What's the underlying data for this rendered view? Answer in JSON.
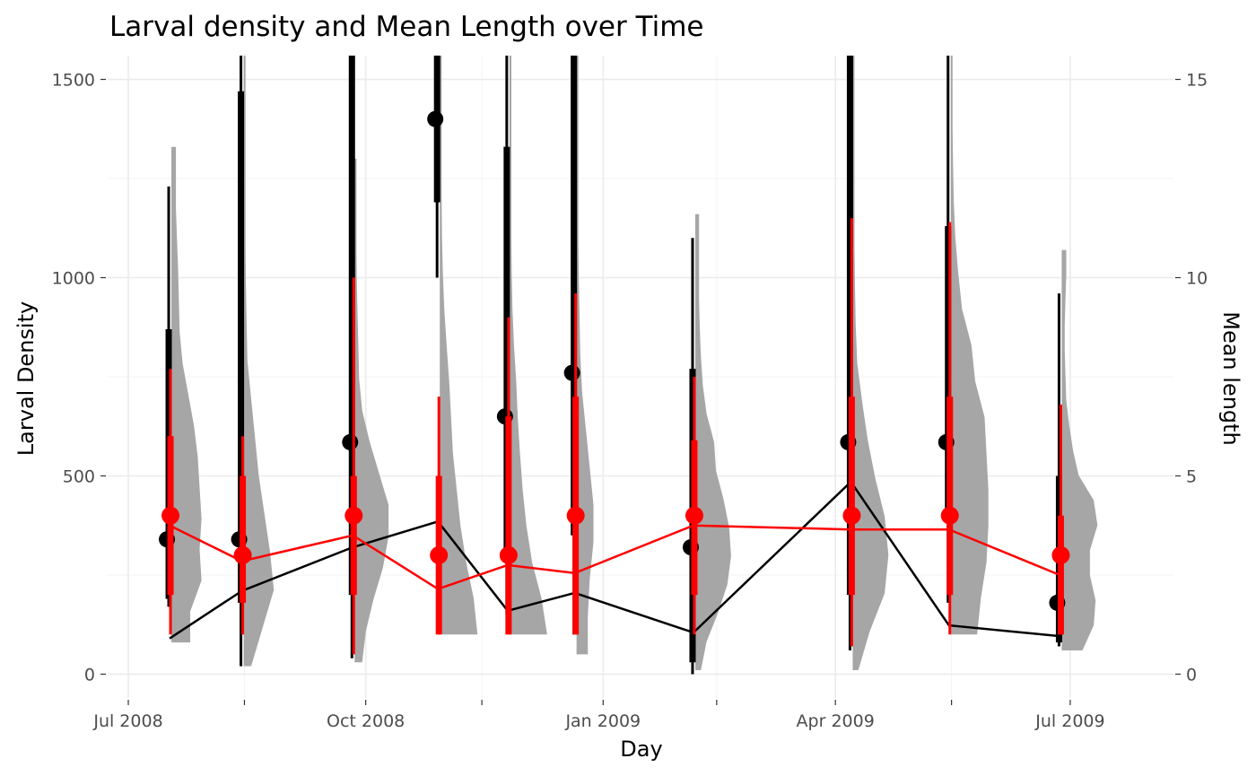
{
  "chart_data": {
    "type": "violin-timeseries",
    "title": "Larval density and Mean Length over Time",
    "xlabel": "Day",
    "ylabel": "Larval Density",
    "y2label": "Mean length",
    "y2label_color": "#ff0000",
    "x_range": [
      "2008-06-23",
      "2009-08-10"
    ],
    "x_major_ticks": [
      {
        "date": "2008-07-01",
        "label": "Jul 2008"
      },
      {
        "date": "2008-10-01",
        "label": "Oct 2008"
      },
      {
        "date": "2009-01-01",
        "label": "Jan 2009"
      },
      {
        "date": "2009-04-01",
        "label": "Apr 2009"
      },
      {
        "date": "2009-07-01",
        "label": "Jul 2009"
      }
    ],
    "x_minor_ticks": [
      "2008-08-15",
      "2008-11-15",
      "2009-02-14",
      "2009-05-16"
    ],
    "ylim": [
      -60,
      1560
    ],
    "y_ticks": [
      0,
      500,
      1000,
      1500
    ],
    "y_tick_labels": [
      "0",
      "500",
      "1000",
      "1500"
    ],
    "y2lim": [
      -0.6,
      15.6
    ],
    "y2_ticks": [
      0,
      5,
      10,
      15
    ],
    "y2_tick_labels": [
      "0",
      "5",
      "10",
      "15"
    ],
    "colors": {
      "density": "#000000",
      "length": "#ff0000",
      "violin": "#a6a6a6",
      "grid": "#ebebeb",
      "tick_text": "#4d4d4d"
    },
    "samples": [
      {
        "date": "2008-07-17",
        "density_median": 340,
        "density_q1": 190,
        "density_q3": 870,
        "density_min": 170,
        "density_max": 1230,
        "density_mean": 90,
        "length_median": 4.0,
        "length_q1": 2.0,
        "length_q3": 6.0,
        "length_min": 1.0,
        "length_max": 7.7,
        "length_mean": 3.75,
        "violin_min": 0.8,
        "violin_max": 13.3,
        "violin_profile": [
          0.5,
          0.5,
          0.8,
          0.75,
          0.8,
          0.75,
          0.7,
          0.6,
          0.45,
          0.3,
          0.22,
          0.2,
          0.18,
          0.15,
          0.12,
          0.12,
          0.12
        ]
      },
      {
        "date": "2008-08-14",
        "density_median": 340,
        "density_q1": 180,
        "density_q3": 1470,
        "density_min": 20,
        "density_max": 1560,
        "density_mean": 210,
        "length_median": 3.0,
        "length_q1": 1.8,
        "length_q3": 5.0,
        "length_min": 1.0,
        "length_max": 6.0,
        "length_mean": 2.85,
        "violin_min": 0.2,
        "violin_max": 15.6,
        "violin_profile": [
          0.2,
          0.5,
          0.8,
          0.7,
          0.55,
          0.4,
          0.3,
          0.2,
          0.1,
          0.08,
          0.06,
          0.05,
          0.05,
          0.05,
          0.05,
          0.05,
          0.05
        ]
      },
      {
        "date": "2008-09-26",
        "density_median": 585,
        "density_q1": 200,
        "density_q3": 1560,
        "density_min": 40,
        "density_max": 1560,
        "density_mean": 320,
        "length_median": 4.0,
        "length_q1": 2.0,
        "length_q3": 5.0,
        "length_min": 0.5,
        "length_max": 10.0,
        "length_mean": 3.5,
        "violin_min": 0.3,
        "violin_max": 13.0,
        "violin_profile": [
          0.2,
          0.3,
          0.5,
          0.75,
          0.9,
          0.9,
          0.65,
          0.4,
          0.2,
          0.12,
          0.1,
          0.08,
          0.06,
          0.05,
          0.05,
          0.05,
          0.05
        ]
      },
      {
        "date": "2008-10-29",
        "density_median": 1400,
        "density_q1": 1190,
        "density_q3": 1560,
        "density_min": 1000,
        "density_max": 1560,
        "density_mean": 385,
        "length_median": 3.0,
        "length_q1": 1.0,
        "length_q3": 5.0,
        "length_min": 1.0,
        "length_max": 7.0,
        "length_mean": 2.15,
        "violin_min": 1.0,
        "violin_max": 15.6,
        "violin_profile": [
          1.0,
          0.9,
          0.7,
          0.55,
          0.45,
          0.35,
          0.3,
          0.25,
          0.18,
          0.12,
          0.08,
          0.06,
          0.05,
          0.05,
          0.05,
          0.05,
          0.05
        ]
      },
      {
        "date": "2008-11-25",
        "density_median": 650,
        "density_q1": 300,
        "density_q3": 1330,
        "density_min": 150,
        "density_max": 1560,
        "density_mean": 160,
        "length_median": 3.0,
        "length_q1": 1.0,
        "length_q3": 6.5,
        "length_min": 1.0,
        "length_max": 9.0,
        "length_mean": 2.75,
        "violin_min": 1.0,
        "violin_max": 15.6,
        "violin_profile": [
          1.0,
          0.85,
          0.6,
          0.45,
          0.35,
          0.28,
          0.22,
          0.18,
          0.12,
          0.08,
          0.06,
          0.05,
          0.05,
          0.05,
          0.05,
          0.05,
          0.05
        ]
      },
      {
        "date": "2008-12-21",
        "density_median": 760,
        "density_q1": 350,
        "density_q3": 1560,
        "density_min": 100,
        "density_max": 1560,
        "density_mean": 205,
        "length_median": 4.0,
        "length_q1": 1.0,
        "length_q3": 7.0,
        "length_min": 1.0,
        "length_max": 9.6,
        "length_mean": 2.55,
        "violin_min": 0.5,
        "violin_max": 15.6,
        "violin_profile": [
          0.3,
          0.3,
          0.35,
          0.45,
          0.45,
          0.35,
          0.25,
          0.15,
          0.1,
          0.08,
          0.06,
          0.05,
          0.05,
          0.05,
          0.05,
          0.05,
          0.05
        ]
      },
      {
        "date": "2009-02-05",
        "density_median": 320,
        "density_q1": 30,
        "density_q3": 770,
        "density_min": 0,
        "density_max": 1100,
        "density_mean": 105,
        "length_median": 4.0,
        "length_q1": 2.0,
        "length_q3": 5.9,
        "length_min": 1.0,
        "length_max": 7.5,
        "length_mean": 3.75,
        "violin_min": 0.1,
        "violin_max": 11.6,
        "violin_profile": [
          0.15,
          0.3,
          0.6,
          0.85,
          0.95,
          0.9,
          0.75,
          0.55,
          0.5,
          0.3,
          0.2,
          0.15,
          0.12,
          0.1,
          0.1,
          0.1,
          0.1
        ]
      },
      {
        "date": "2009-04-07",
        "density_median": 585,
        "density_q1": 200,
        "density_q3": 1560,
        "density_min": 60,
        "density_max": 1560,
        "density_mean": 485,
        "length_median": 4.0,
        "length_q1": 2.0,
        "length_q3": 7.0,
        "length_min": 0.7,
        "length_max": 11.5,
        "length_mean": 3.65,
        "violin_min": 0.1,
        "violin_max": 15.6,
        "violin_profile": [
          0.15,
          0.45,
          0.85,
          0.95,
          0.85,
          0.6,
          0.4,
          0.25,
          0.12,
          0.08,
          0.06,
          0.05,
          0.05,
          0.05,
          0.05,
          0.05,
          0.05
        ]
      },
      {
        "date": "2009-05-15",
        "density_median": 585,
        "density_q1": 400,
        "density_q3": 1130,
        "density_min": 180,
        "density_max": 1560,
        "density_mean": 123,
        "length_median": 4.0,
        "length_q1": 2.0,
        "length_q3": 7.0,
        "length_min": 1.0,
        "length_max": 11.4,
        "length_mean": 3.65,
        "violin_min": 1.0,
        "violin_max": 15.6,
        "violin_profile": [
          0.7,
          0.8,
          0.95,
          1.0,
          1.0,
          0.95,
          0.9,
          0.65,
          0.55,
          0.3,
          0.2,
          0.12,
          0.08,
          0.06,
          0.05,
          0.05,
          0.05
        ]
      },
      {
        "date": "2009-06-27",
        "density_median": 180,
        "density_q1": 80,
        "density_q3": 500,
        "density_min": 70,
        "density_max": 960,
        "density_mean": 96,
        "length_median": 3.0,
        "length_q1": 1.0,
        "length_q3": 4.0,
        "length_min": 1.0,
        "length_max": 6.8,
        "length_mean": 2.5,
        "violin_min": 0.6,
        "violin_max": 10.7,
        "violin_profile": [
          0.55,
          0.85,
          0.9,
          0.75,
          0.75,
          0.95,
          0.85,
          0.45,
          0.3,
          0.2,
          0.12,
          0.1,
          0.08,
          0.08,
          0.1,
          0.12,
          0.12
        ]
      }
    ]
  }
}
